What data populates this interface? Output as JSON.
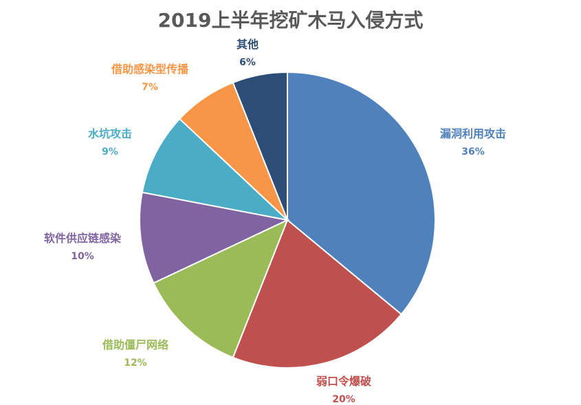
{
  "chart_data": {
    "type": "pie",
    "title": "2019上半年挖矿木马入侵方式",
    "slices": [
      {
        "label": "漏洞利用攻击",
        "value": 36,
        "value_label": "36%",
        "color": "#4F81BD"
      },
      {
        "label": "弱口令爆破",
        "value": 20,
        "value_label": "20%",
        "color": "#C0504D"
      },
      {
        "label": "借助僵尸网络",
        "value": 12,
        "value_label": "12%",
        "color": "#9BBB59"
      },
      {
        "label": "软件供应链感染",
        "value": 10,
        "value_label": "10%",
        "color": "#8064A2"
      },
      {
        "label": "水坑攻击",
        "value": 9,
        "value_label": "9%",
        "color": "#4BACC6"
      },
      {
        "label": "借助感染型传播",
        "value": 7,
        "value_label": "7%",
        "color": "#F79646"
      },
      {
        "label": "其他",
        "value": 6,
        "value_label": "6%",
        "color": "#2C4D75"
      }
    ]
  }
}
